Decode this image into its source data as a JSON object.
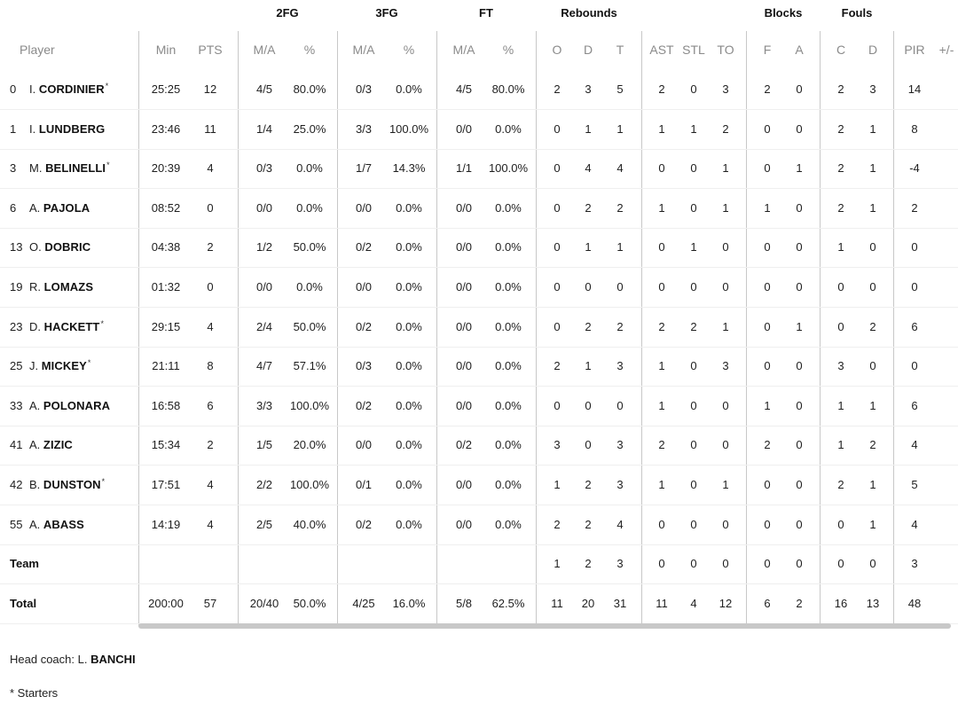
{
  "groups": {
    "fg2": "2FG",
    "fg3": "3FG",
    "ft": "FT",
    "rebounds": "Rebounds",
    "blocks": "Blocks",
    "fouls": "Fouls"
  },
  "columns": {
    "player": "Player",
    "min": "Min",
    "pts": "PTS",
    "fg2_ma": "M/A",
    "fg2_pct": "%",
    "fg3_ma": "M/A",
    "fg3_pct": "%",
    "ft_ma": "M/A",
    "ft_pct": "%",
    "reb_o": "O",
    "reb_d": "D",
    "reb_t": "T",
    "ast": "AST",
    "stl": "STL",
    "to": "TO",
    "blk_f": "F",
    "blk_a": "A",
    "foul_c": "C",
    "foul_d": "D",
    "pir": "PIR",
    "plus_minus": "+/-"
  },
  "star_mark": "*",
  "players": [
    {
      "num": "0",
      "initial": "I.",
      "surname": "CORDINIER",
      "starter": true,
      "min": "25:25",
      "pts": "12",
      "fg2_ma": "4/5",
      "fg2_pct": "80.0%",
      "fg3_ma": "0/3",
      "fg3_pct": "0.0%",
      "ft_ma": "4/5",
      "ft_pct": "80.0%",
      "reb_o": "2",
      "reb_d": "3",
      "reb_t": "5",
      "ast": "2",
      "stl": "0",
      "to": "3",
      "blk_f": "2",
      "blk_a": "0",
      "foul_c": "2",
      "foul_d": "3",
      "pir": "14"
    },
    {
      "num": "1",
      "initial": "I.",
      "surname": "LUNDBERG",
      "starter": false,
      "min": "23:46",
      "pts": "11",
      "fg2_ma": "1/4",
      "fg2_pct": "25.0%",
      "fg3_ma": "3/3",
      "fg3_pct": "100.0%",
      "ft_ma": "0/0",
      "ft_pct": "0.0%",
      "reb_o": "0",
      "reb_d": "1",
      "reb_t": "1",
      "ast": "1",
      "stl": "1",
      "to": "2",
      "blk_f": "0",
      "blk_a": "0",
      "foul_c": "2",
      "foul_d": "1",
      "pir": "8"
    },
    {
      "num": "3",
      "initial": "M.",
      "surname": "BELINELLI",
      "starter": true,
      "min": "20:39",
      "pts": "4",
      "fg2_ma": "0/3",
      "fg2_pct": "0.0%",
      "fg3_ma": "1/7",
      "fg3_pct": "14.3%",
      "ft_ma": "1/1",
      "ft_pct": "100.0%",
      "reb_o": "0",
      "reb_d": "4",
      "reb_t": "4",
      "ast": "0",
      "stl": "0",
      "to": "1",
      "blk_f": "0",
      "blk_a": "1",
      "foul_c": "2",
      "foul_d": "1",
      "pir": "-4"
    },
    {
      "num": "6",
      "initial": "A.",
      "surname": "PAJOLA",
      "starter": false,
      "min": "08:52",
      "pts": "0",
      "fg2_ma": "0/0",
      "fg2_pct": "0.0%",
      "fg3_ma": "0/0",
      "fg3_pct": "0.0%",
      "ft_ma": "0/0",
      "ft_pct": "0.0%",
      "reb_o": "0",
      "reb_d": "2",
      "reb_t": "2",
      "ast": "1",
      "stl": "0",
      "to": "1",
      "blk_f": "1",
      "blk_a": "0",
      "foul_c": "2",
      "foul_d": "1",
      "pir": "2"
    },
    {
      "num": "13",
      "initial": "O.",
      "surname": "DOBRIC",
      "starter": false,
      "min": "04:38",
      "pts": "2",
      "fg2_ma": "1/2",
      "fg2_pct": "50.0%",
      "fg3_ma": "0/2",
      "fg3_pct": "0.0%",
      "ft_ma": "0/0",
      "ft_pct": "0.0%",
      "reb_o": "0",
      "reb_d": "1",
      "reb_t": "1",
      "ast": "0",
      "stl": "1",
      "to": "0",
      "blk_f": "0",
      "blk_a": "0",
      "foul_c": "1",
      "foul_d": "0",
      "pir": "0"
    },
    {
      "num": "19",
      "initial": "R.",
      "surname": "LOMAZS",
      "starter": false,
      "min": "01:32",
      "pts": "0",
      "fg2_ma": "0/0",
      "fg2_pct": "0.0%",
      "fg3_ma": "0/0",
      "fg3_pct": "0.0%",
      "ft_ma": "0/0",
      "ft_pct": "0.0%",
      "reb_o": "0",
      "reb_d": "0",
      "reb_t": "0",
      "ast": "0",
      "stl": "0",
      "to": "0",
      "blk_f": "0",
      "blk_a": "0",
      "foul_c": "0",
      "foul_d": "0",
      "pir": "0"
    },
    {
      "num": "23",
      "initial": "D.",
      "surname": "HACKETT",
      "starter": true,
      "min": "29:15",
      "pts": "4",
      "fg2_ma": "2/4",
      "fg2_pct": "50.0%",
      "fg3_ma": "0/2",
      "fg3_pct": "0.0%",
      "ft_ma": "0/0",
      "ft_pct": "0.0%",
      "reb_o": "0",
      "reb_d": "2",
      "reb_t": "2",
      "ast": "2",
      "stl": "2",
      "to": "1",
      "blk_f": "0",
      "blk_a": "1",
      "foul_c": "0",
      "foul_d": "2",
      "pir": "6"
    },
    {
      "num": "25",
      "initial": "J.",
      "surname": "MICKEY",
      "starter": true,
      "min": "21:11",
      "pts": "8",
      "fg2_ma": "4/7",
      "fg2_pct": "57.1%",
      "fg3_ma": "0/3",
      "fg3_pct": "0.0%",
      "ft_ma": "0/0",
      "ft_pct": "0.0%",
      "reb_o": "2",
      "reb_d": "1",
      "reb_t": "3",
      "ast": "1",
      "stl": "0",
      "to": "3",
      "blk_f": "0",
      "blk_a": "0",
      "foul_c": "3",
      "foul_d": "0",
      "pir": "0"
    },
    {
      "num": "33",
      "initial": "A.",
      "surname": "POLONARA",
      "starter": false,
      "min": "16:58",
      "pts": "6",
      "fg2_ma": "3/3",
      "fg2_pct": "100.0%",
      "fg3_ma": "0/2",
      "fg3_pct": "0.0%",
      "ft_ma": "0/0",
      "ft_pct": "0.0%",
      "reb_o": "0",
      "reb_d": "0",
      "reb_t": "0",
      "ast": "1",
      "stl": "0",
      "to": "0",
      "blk_f": "1",
      "blk_a": "0",
      "foul_c": "1",
      "foul_d": "1",
      "pir": "6"
    },
    {
      "num": "41",
      "initial": "A.",
      "surname": "ZIZIC",
      "starter": false,
      "min": "15:34",
      "pts": "2",
      "fg2_ma": "1/5",
      "fg2_pct": "20.0%",
      "fg3_ma": "0/0",
      "fg3_pct": "0.0%",
      "ft_ma": "0/2",
      "ft_pct": "0.0%",
      "reb_o": "3",
      "reb_d": "0",
      "reb_t": "3",
      "ast": "2",
      "stl": "0",
      "to": "0",
      "blk_f": "2",
      "blk_a": "0",
      "foul_c": "1",
      "foul_d": "2",
      "pir": "4"
    },
    {
      "num": "42",
      "initial": "B.",
      "surname": "DUNSTON",
      "starter": true,
      "min": "17:51",
      "pts": "4",
      "fg2_ma": "2/2",
      "fg2_pct": "100.0%",
      "fg3_ma": "0/1",
      "fg3_pct": "0.0%",
      "ft_ma": "0/0",
      "ft_pct": "0.0%",
      "reb_o": "1",
      "reb_d": "2",
      "reb_t": "3",
      "ast": "1",
      "stl": "0",
      "to": "1",
      "blk_f": "0",
      "blk_a": "0",
      "foul_c": "2",
      "foul_d": "1",
      "pir": "5"
    },
    {
      "num": "55",
      "initial": "A.",
      "surname": "ABASS",
      "starter": false,
      "min": "14:19",
      "pts": "4",
      "fg2_ma": "2/5",
      "fg2_pct": "40.0%",
      "fg3_ma": "0/2",
      "fg3_pct": "0.0%",
      "ft_ma": "0/0",
      "ft_pct": "0.0%",
      "reb_o": "2",
      "reb_d": "2",
      "reb_t": "4",
      "ast": "0",
      "stl": "0",
      "to": "0",
      "blk_f": "0",
      "blk_a": "0",
      "foul_c": "0",
      "foul_d": "1",
      "pir": "4"
    }
  ],
  "team_row": {
    "label": "Team",
    "reb_o": "1",
    "reb_d": "2",
    "reb_t": "3",
    "ast": "0",
    "stl": "0",
    "to": "0",
    "blk_f": "0",
    "blk_a": "0",
    "foul_c": "0",
    "foul_d": "0",
    "pir": "3"
  },
  "total_row": {
    "label": "Total",
    "min": "200:00",
    "pts": "57",
    "fg2_ma": "20/40",
    "fg2_pct": "50.0%",
    "fg3_ma": "4/25",
    "fg3_pct": "16.0%",
    "ft_ma": "5/8",
    "ft_pct": "62.5%",
    "reb_o": "11",
    "reb_d": "20",
    "reb_t": "31",
    "ast": "11",
    "stl": "4",
    "to": "12",
    "blk_f": "6",
    "blk_a": "2",
    "foul_c": "16",
    "foul_d": "13",
    "pir": "48"
  },
  "footer": {
    "coach_prefix": "Head coach: L.",
    "coach_surname": "BANCHI",
    "starters_note": "* Starters"
  }
}
